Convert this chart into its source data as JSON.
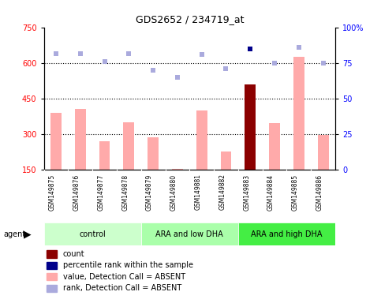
{
  "title": "GDS2652 / 234719_at",
  "samples": [
    "GSM149875",
    "GSM149876",
    "GSM149877",
    "GSM149878",
    "GSM149879",
    "GSM149880",
    "GSM149881",
    "GSM149882",
    "GSM149883",
    "GSM149884",
    "GSM149885",
    "GSM149886"
  ],
  "bar_values": [
    390,
    405,
    270,
    350,
    285,
    155,
    400,
    225,
    510,
    345,
    625,
    295
  ],
  "bar_colors": [
    "#ffaaaa",
    "#ffaaaa",
    "#ffaaaa",
    "#ffaaaa",
    "#ffaaaa",
    "#ffaaaa",
    "#ffaaaa",
    "#ffaaaa",
    "#8B0000",
    "#ffaaaa",
    "#ffaaaa",
    "#ffaaaa"
  ],
  "rank_dots": [
    640,
    640,
    605,
    640,
    570,
    540,
    635,
    575,
    660,
    600,
    665,
    600
  ],
  "rank_dot_colors": [
    "#aaaadd",
    "#aaaadd",
    "#aaaadd",
    "#aaaadd",
    "#aaaadd",
    "#aaaadd",
    "#aaaadd",
    "#aaaadd",
    "#00008B",
    "#aaaadd",
    "#aaaadd",
    "#aaaadd"
  ],
  "ylim_left": [
    150,
    750
  ],
  "ylim_right": [
    0,
    100
  ],
  "yticks_left": [
    150,
    300,
    450,
    600,
    750
  ],
  "yticks_right": [
    0,
    25,
    50,
    75,
    100
  ],
  "hlines": [
    300,
    450,
    600
  ],
  "groups": [
    {
      "label": "control",
      "start": 0,
      "end": 3,
      "color": "#ccffcc"
    },
    {
      "label": "ARA and low DHA",
      "start": 4,
      "end": 7,
      "color": "#aaffaa"
    },
    {
      "label": "ARA and high DHA",
      "start": 8,
      "end": 11,
      "color": "#44ee44"
    }
  ],
  "legend_items": [
    {
      "label": "count",
      "color": "#8B0000"
    },
    {
      "label": "percentile rank within the sample",
      "color": "#00008B"
    },
    {
      "label": "value, Detection Call = ABSENT",
      "color": "#ffaaaa"
    },
    {
      "label": "rank, Detection Call = ABSENT",
      "color": "#aaaadd"
    }
  ],
  "background_color": "#ffffff",
  "label_bg_color": "#cccccc",
  "bar_width": 0.45
}
